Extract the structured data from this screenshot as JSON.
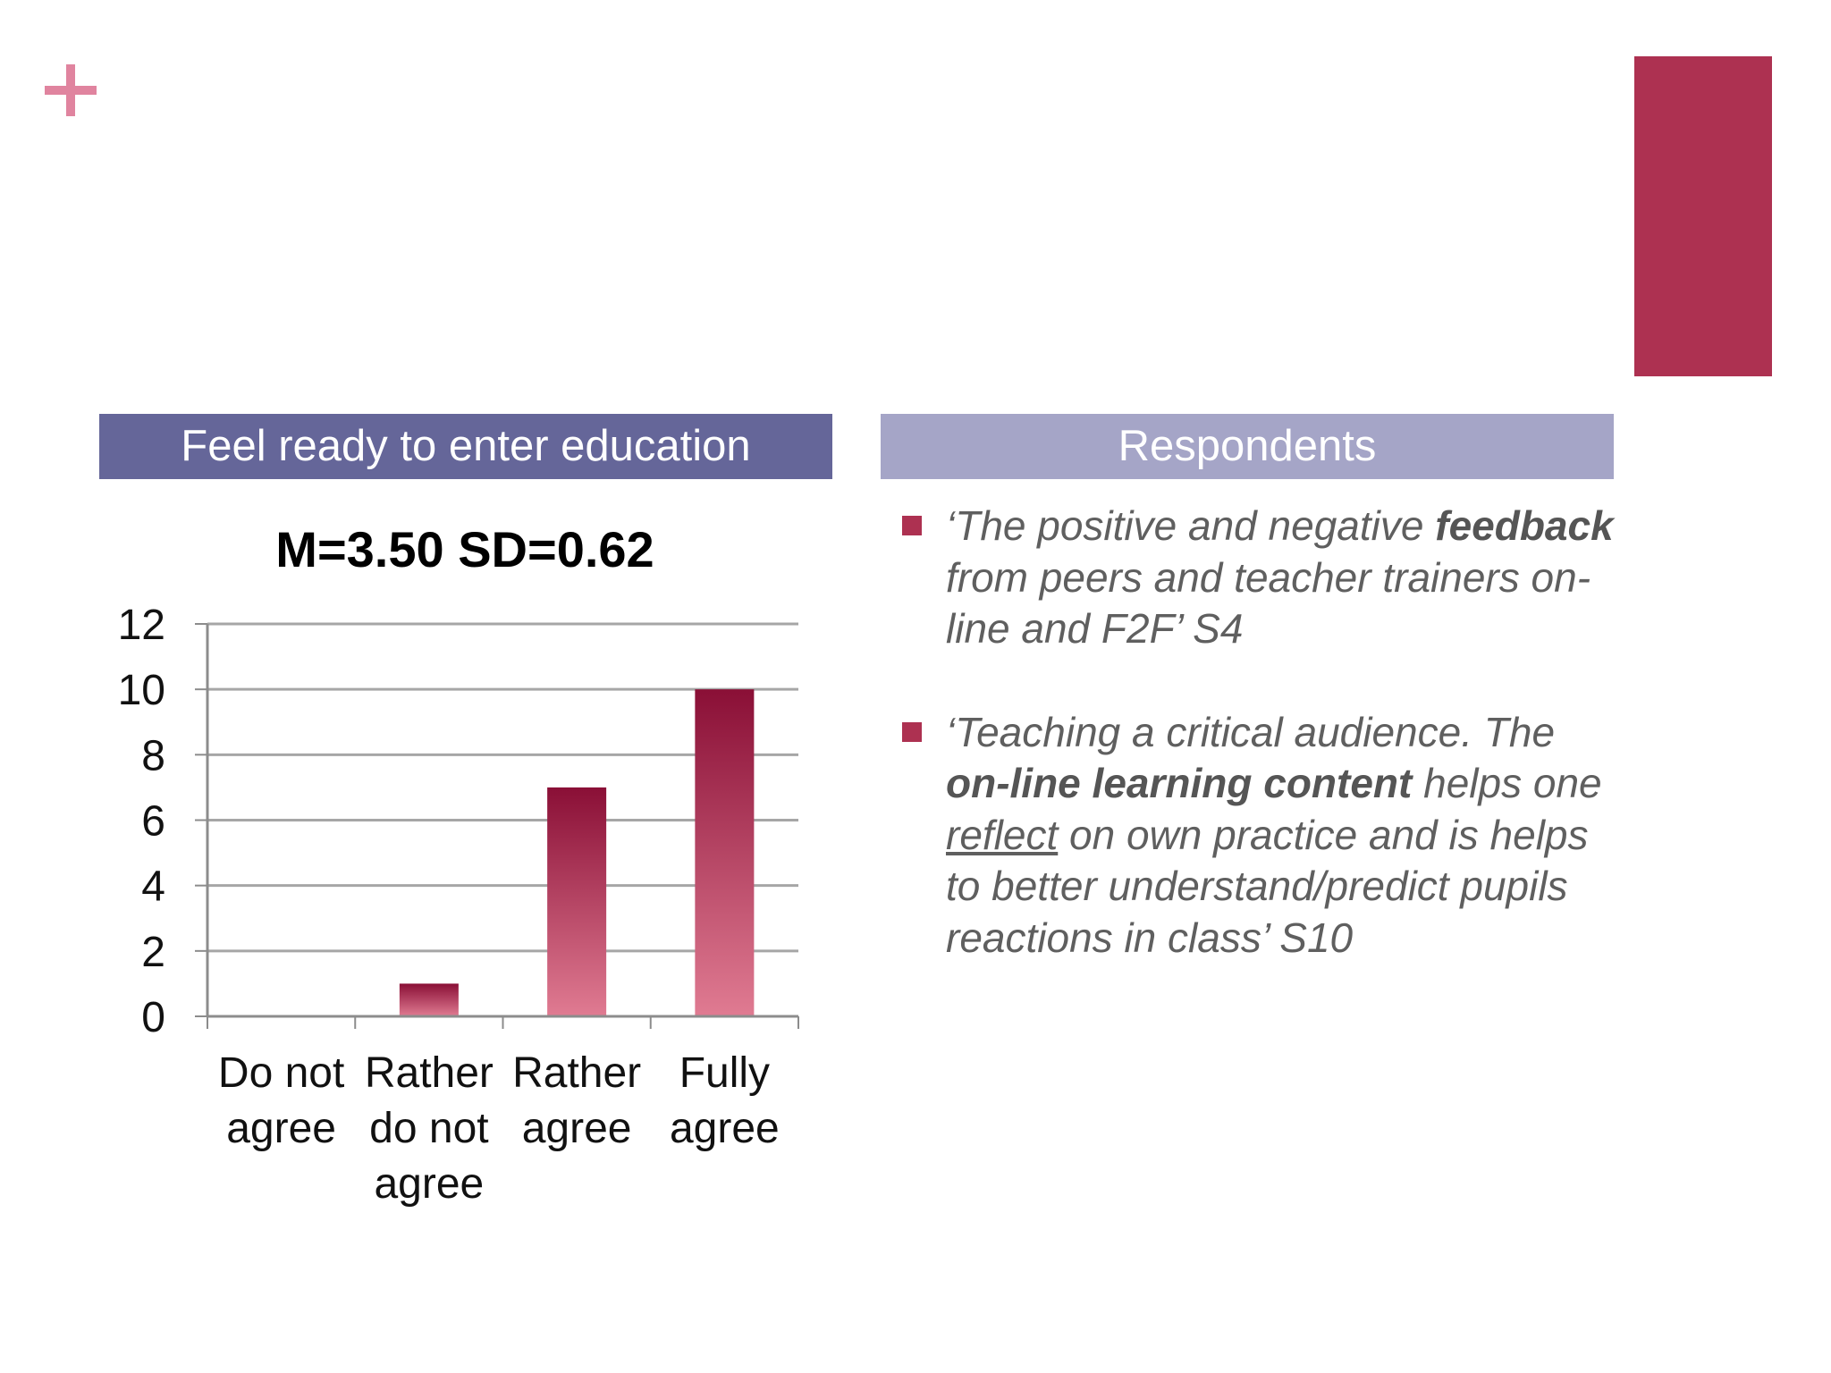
{
  "slide": {
    "accent_color": "#ad3151",
    "plus_color": "#e0849f",
    "left_header": "Feel ready to enter education",
    "right_header": "Respondents",
    "left_header_color": "#656699",
    "right_header_color": "#a5a5c7"
  },
  "quotes": [
    {
      "parts": [
        {
          "text": "‘The positive and negative ",
          "style": "normal"
        },
        {
          "text": "feedback",
          "style": "bold"
        },
        {
          "text": " from peers and teacher trainers on-line and F2F’ S4",
          "style": "normal"
        }
      ]
    },
    {
      "parts": [
        {
          "text": "‘Teaching a critical audience. The ",
          "style": "normal"
        },
        {
          "text": "on-line learning content",
          "style": "bold"
        },
        {
          "text": " helps one ",
          "style": "normal"
        },
        {
          "text": "reflect",
          "style": "underline"
        },
        {
          "text": " on own practice and is helps to better understand/predict pupils reactions in class’ S10",
          "style": "normal"
        }
      ]
    }
  ],
  "chart_data": {
    "type": "bar",
    "title": "M=3.50 SD=0.62",
    "categories": [
      [
        "Do not",
        "agree"
      ],
      [
        "Rather",
        "do not",
        "agree"
      ],
      [
        "Rather",
        "agree"
      ],
      [
        "Fully",
        "agree"
      ]
    ],
    "values": [
      0,
      1,
      7,
      10
    ],
    "ylim": [
      0,
      12
    ],
    "yticks": [
      0,
      2,
      4,
      6,
      8,
      10,
      12
    ],
    "grid": true,
    "legend": "none",
    "bar_color_top": "#8a0f36",
    "bar_color_bottom": "#e07b92"
  }
}
